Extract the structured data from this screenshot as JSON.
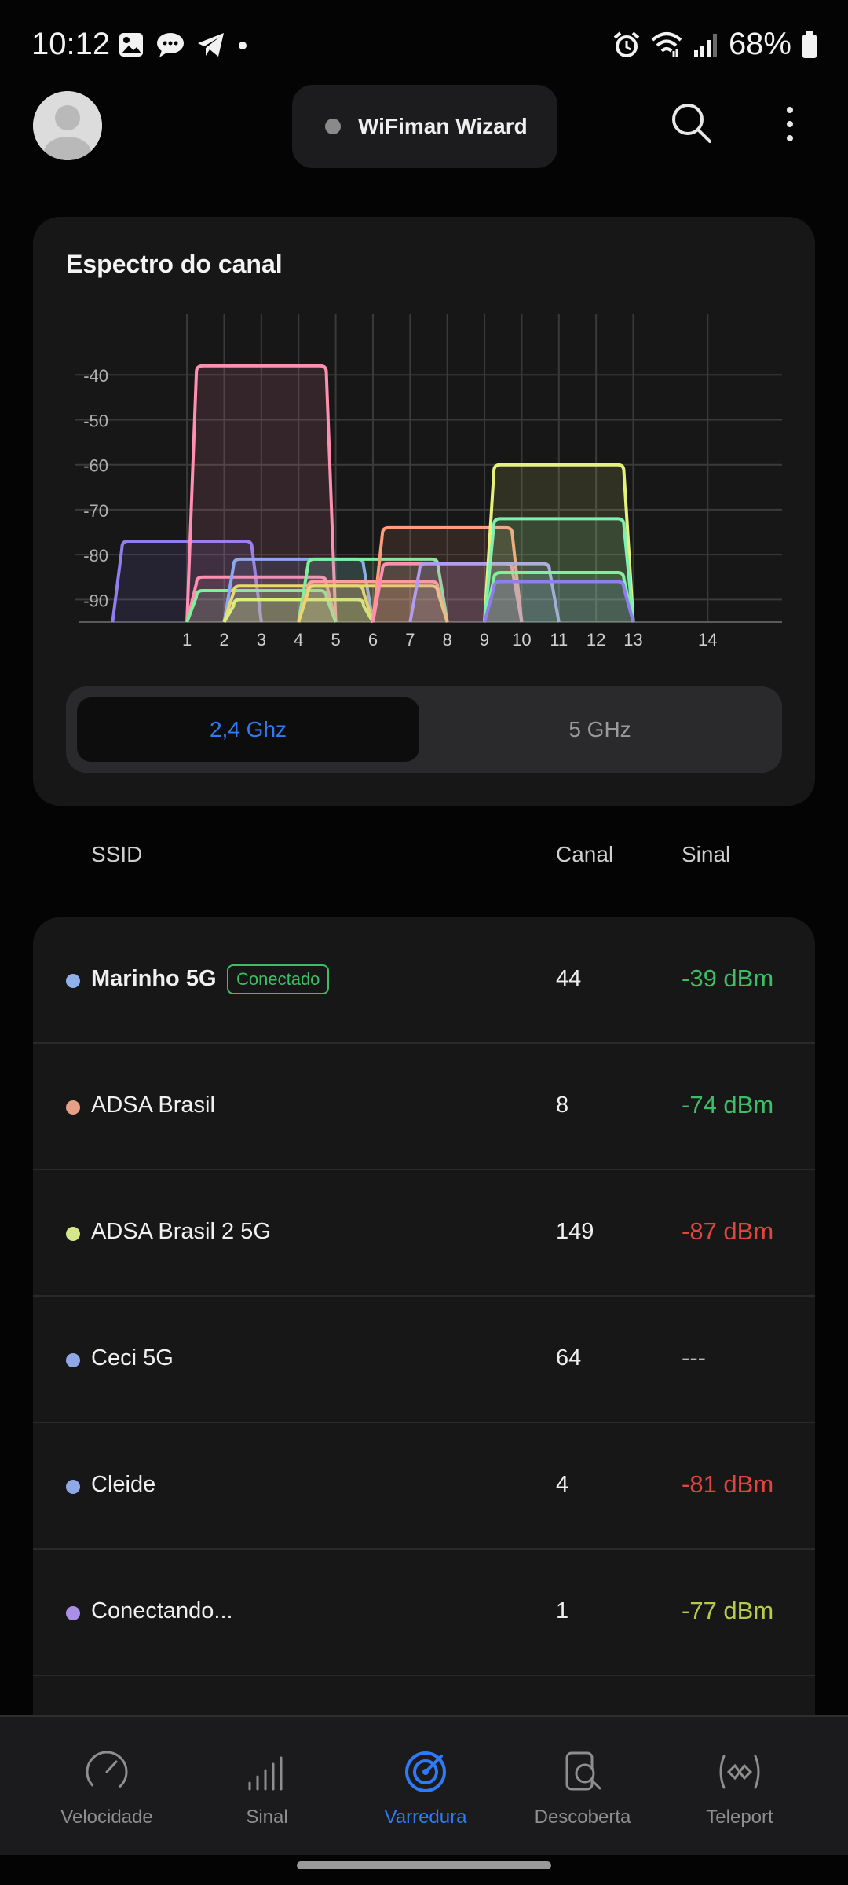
{
  "status_bar": {
    "time": "10:12",
    "battery": "68%",
    "icons": [
      "gallery-icon",
      "chat-icon",
      "telegram-icon",
      "dot-icon",
      "alarm-icon",
      "wifi-icon",
      "signal-icon",
      "battery-icon"
    ]
  },
  "header": {
    "title": "WiFiman Wizard",
    "icons": [
      "avatar",
      "search-icon",
      "more-vert-icon"
    ]
  },
  "spectrum": {
    "title": "Espectro do canal",
    "band_options": [
      "2,4 Ghz",
      "5 GHz"
    ],
    "selected_band": "2,4 Ghz"
  },
  "chart_data": {
    "type": "area",
    "title": "Espectro do canal",
    "x_ticks": [
      "1",
      "2",
      "3",
      "4",
      "5",
      "6",
      "7",
      "8",
      "9",
      "10",
      "11",
      "12",
      "13",
      "14"
    ],
    "y_ticks": [
      "-40",
      "-50",
      "-60",
      "-70",
      "-80",
      "-90"
    ],
    "ylim": [
      -95,
      -30
    ],
    "xlim": [
      -2,
      17
    ],
    "grid": true,
    "series": [
      {
        "channel": 1,
        "signal": -77,
        "color": "#8f7ef0"
      },
      {
        "channel": 3,
        "signal": -38,
        "color": "#ff8fb0"
      },
      {
        "channel": 3,
        "signal": -85,
        "color": "#ff8fb0"
      },
      {
        "channel": 3,
        "signal": -88,
        "color": "#7ff09c"
      },
      {
        "channel": 4,
        "signal": -81,
        "color": "#8da6f2"
      },
      {
        "channel": 4,
        "signal": -87,
        "color": "#ead86f"
      },
      {
        "channel": 4,
        "signal": -90,
        "color": "#d9f07c"
      },
      {
        "channel": 6,
        "signal": -81,
        "color": "#7ff09c"
      },
      {
        "channel": 6,
        "signal": -86,
        "color": "#ff9e9e"
      },
      {
        "channel": 6,
        "signal": -87,
        "color": "#ead86f"
      },
      {
        "channel": 8,
        "signal": -74,
        "color": "#ff9c7a"
      },
      {
        "channel": 8,
        "signal": -82,
        "color": "#ff8fb0"
      },
      {
        "channel": 9,
        "signal": -82,
        "color": "#b09cf0"
      },
      {
        "channel": 11,
        "signal": -60,
        "color": "#e4f27a"
      },
      {
        "channel": 11,
        "signal": -72,
        "color": "#7ff0b0"
      },
      {
        "channel": 11,
        "signal": -84,
        "color": "#7ff09c"
      },
      {
        "channel": 11,
        "signal": -86,
        "color": "#8f7ef0"
      }
    ]
  },
  "table": {
    "headers": {
      "ssid": "SSID",
      "channel": "Canal",
      "signal": "Sinal"
    },
    "rows": [
      {
        "ssid": "Marinho 5G",
        "badge": "Conectado",
        "channel": "44",
        "signal": "-39 dBm",
        "dot_color": "#8fb0e8",
        "signal_color": "#3ebd67"
      },
      {
        "ssid": "ADSA Brasil",
        "badge": "",
        "channel": "8",
        "signal": "-74 dBm",
        "dot_color": "#e6a086",
        "signal_color": "#3ebd67"
      },
      {
        "ssid": "ADSA Brasil 2 5G",
        "badge": "",
        "channel": "149",
        "signal": "-87 dBm",
        "dot_color": "#d6e68a",
        "signal_color": "#e0453f"
      },
      {
        "ssid": "Ceci 5G",
        "badge": "",
        "channel": "64",
        "signal": "---",
        "dot_color": "#8fa8e8",
        "signal_color": "#b8b8b8"
      },
      {
        "ssid": "Cleide",
        "badge": "",
        "channel": "4",
        "signal": "-81 dBm",
        "dot_color": "#8fa8e8",
        "signal_color": "#e0453f"
      },
      {
        "ssid": "Conectando...",
        "badge": "",
        "channel": "1",
        "signal": "-77 dBm",
        "dot_color": "#a88fe8",
        "signal_color": "#b5cc4a"
      }
    ]
  },
  "bottom_nav": {
    "items": [
      {
        "label": "Velocidade",
        "icon": "speedometer-icon"
      },
      {
        "label": "Sinal",
        "icon": "signal-bars-icon"
      },
      {
        "label": "Varredura",
        "icon": "radar-icon"
      },
      {
        "label": "Descoberta",
        "icon": "discovery-icon"
      },
      {
        "label": "Teleport",
        "icon": "teleport-icon"
      }
    ],
    "active": "Varredura"
  },
  "colors": {
    "accent": "#2f7bf6",
    "good": "#3ebd67",
    "bad": "#e0453f"
  }
}
